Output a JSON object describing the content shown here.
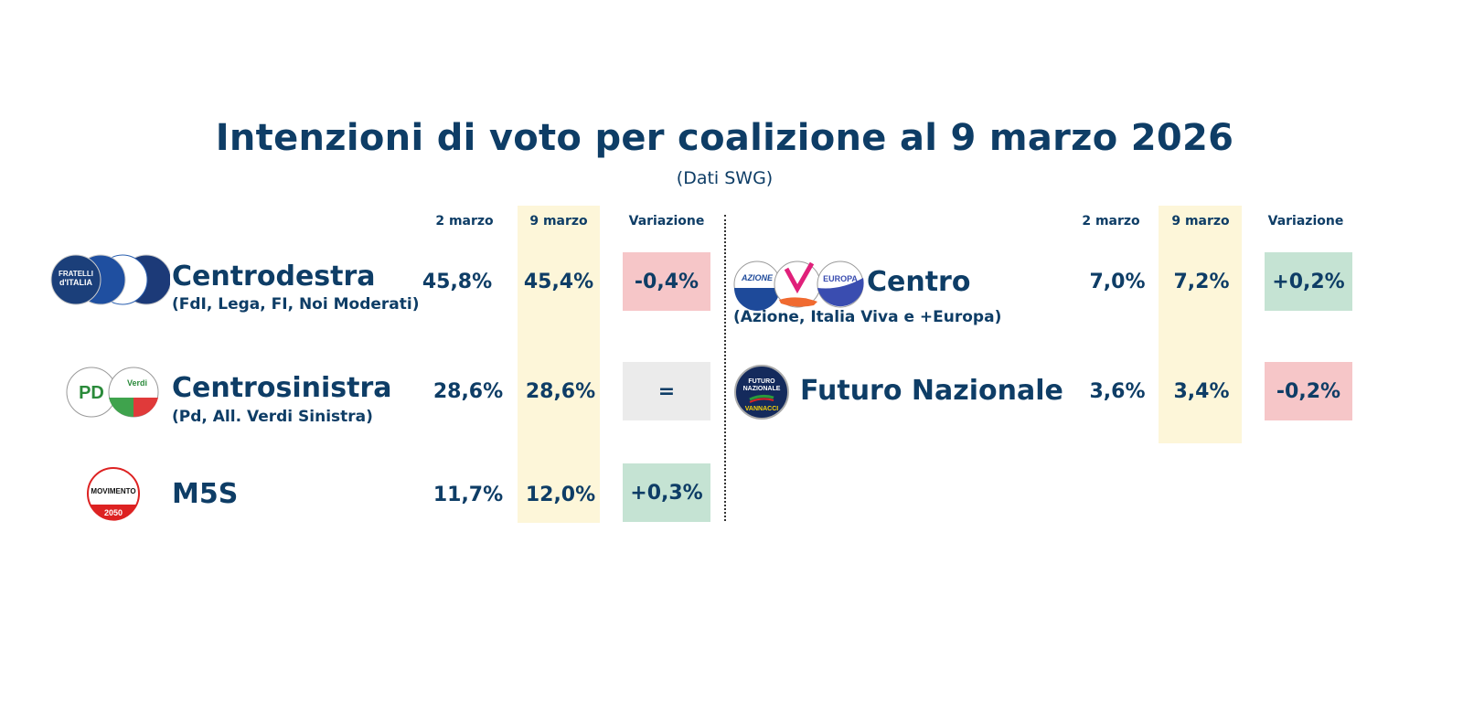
{
  "title": "Intenzioni di voto per coalizione al 9 marzo 2026",
  "subtitle": "(Dati SWG)",
  "colors": {
    "text": "#0e3d66",
    "highlight_column": "#fdf6d9",
    "decrease": "#f6c6c8",
    "increase": "#c5e3d3",
    "unchanged": "#ebebeb"
  },
  "headers": {
    "prev": "2 marzo",
    "curr": "9 marzo",
    "change": "Variazione"
  },
  "chart_data": {
    "type": "table",
    "columns": [
      "2 marzo",
      "9 marzo",
      "Variazione"
    ],
    "rows": [
      {
        "name": "Centrodestra",
        "detail": "(FdI, Lega, FI, Noi Moderati)",
        "prev": "45,8%",
        "curr": "45,4%",
        "change": "-0,4%",
        "trend": "down",
        "logos": [
          "FRATELLI d'ITALIA",
          "LEGA",
          "FORZA ITALIA",
          "NOI MODERATI"
        ]
      },
      {
        "name": "Centrosinistra",
        "detail": "(Pd, All. Verdi Sinistra)",
        "prev": "28,6%",
        "curr": "28,6%",
        "change": "=",
        "trend": "flat",
        "logos": [
          "PD Partito Democratico",
          "Alleanza Verdi Sinistra"
        ]
      },
      {
        "name": "M5S",
        "detail": "",
        "prev": "11,7%",
        "curr": "12,0%",
        "change": "+0,3%",
        "trend": "up",
        "logos": [
          "MOVIMENTO 2050"
        ]
      },
      {
        "name": "Centro",
        "detail": "(Azione, Italia Viva e +Europa)",
        "prev": "7,0%",
        "curr": "7,2%",
        "change": "+0,2%",
        "trend": "up",
        "logos": [
          "AZIONE CALENDA",
          "ITALIA VIVA",
          "+EUROPA"
        ]
      },
      {
        "name": "Futuro Nazionale",
        "detail": "",
        "prev": "3,6%",
        "curr": "3,4%",
        "change": "-0,2%",
        "trend": "down",
        "logos": [
          "FUTURO NAZIONALE VANNACCI"
        ]
      }
    ]
  }
}
